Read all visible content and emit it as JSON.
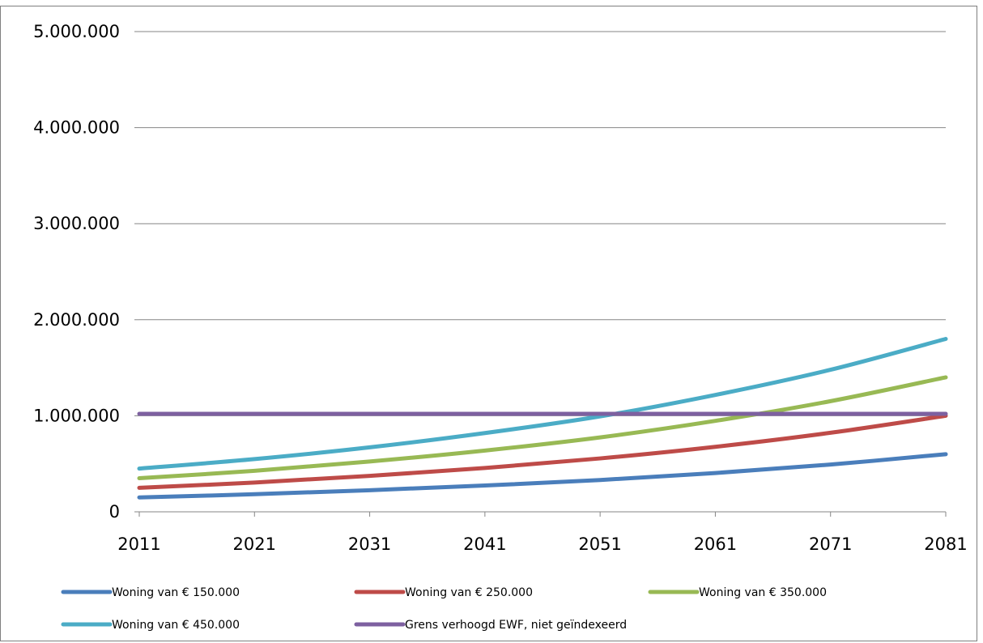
{
  "chart_data": {
    "type": "line",
    "title": "",
    "xlabel": "",
    "ylabel": "",
    "x": [
      2011,
      2021,
      2031,
      2041,
      2051,
      2061,
      2071,
      2081
    ],
    "xlim": [
      2011,
      2081
    ],
    "ylim": [
      0,
      5000000
    ],
    "x_tick_labels": [
      "2011",
      "2021",
      "2031",
      "2041",
      "2051",
      "2061",
      "2071",
      "2081"
    ],
    "y_ticks": [
      0,
      1000000,
      2000000,
      3000000,
      4000000,
      5000000
    ],
    "y_tick_labels": [
      "0",
      "1.000.000",
      "2.000.000",
      "3.000.000",
      "4.000.000",
      "5.000.000"
    ],
    "grid": "horizontal",
    "legend_position": "bottom",
    "series": [
      {
        "name": "Woning van € 150.000",
        "color": "#4a7ebb",
        "values": [
          150000,
          183000,
          225000,
          274000,
          331000,
          404000,
          492000,
          600000
        ]
      },
      {
        "name": "Woning van € 250.000",
        "color": "#be4b48",
        "values": [
          250000,
          305000,
          374000,
          456000,
          556000,
          677000,
          823000,
          1000000
        ]
      },
      {
        "name": "Woning van € 350.000",
        "color": "#98b954",
        "values": [
          350000,
          427000,
          524000,
          638000,
          775000,
          947000,
          1152000,
          1400000
        ]
      },
      {
        "name": "Woning van € 450.000",
        "color": "#4bacc6",
        "values": [
          450000,
          549000,
          671000,
          820000,
          994000,
          1217000,
          1479000,
          1800000
        ]
      },
      {
        "name": "Grens verhoogd EWF, niet geïndexeerd",
        "color": "#7d60a0",
        "values": [
          1020000,
          1020000,
          1020000,
          1020000,
          1020000,
          1020000,
          1020000,
          1020000
        ]
      }
    ]
  }
}
